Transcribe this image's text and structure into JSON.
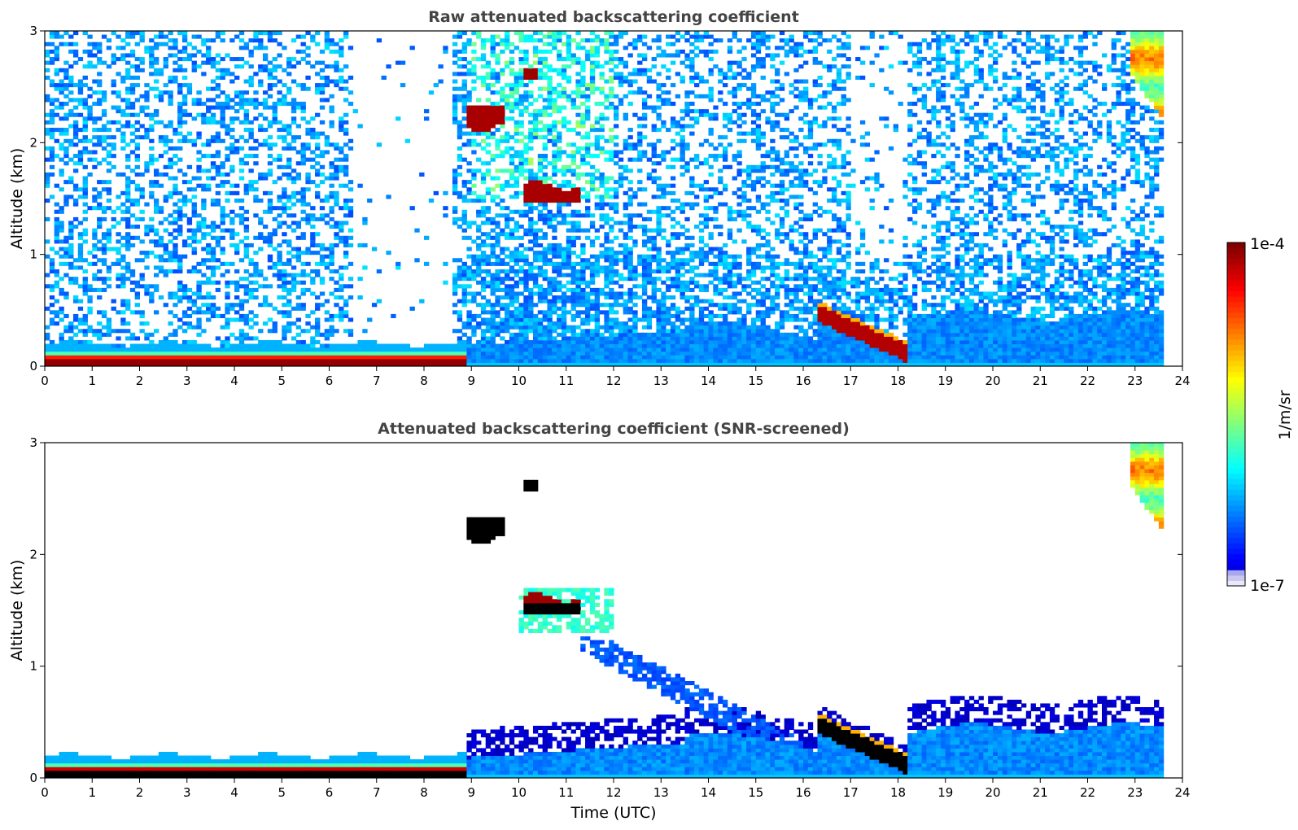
{
  "chart_data": [
    {
      "type": "heatmap",
      "title": "Raw attenuated backscattering coefficient",
      "xlabel": "",
      "ylabel": "Altitude (km)",
      "xlim": [
        0,
        24
      ],
      "ylim": [
        0,
        3
      ],
      "xticks": [
        "0",
        "1",
        "2",
        "3",
        "4",
        "5",
        "6",
        "7",
        "8",
        "9",
        "10",
        "11",
        "12",
        "13",
        "14",
        "15",
        "16",
        "17",
        "18",
        "19",
        "20",
        "21",
        "22",
        "23",
        "24"
      ],
      "yticks": [
        "0",
        "1",
        "2",
        "3"
      ],
      "screened": false,
      "features": [
        {
          "name": "surface layer",
          "t0": 0,
          "t1": 8.9,
          "h0": 0.0,
          "h1": 0.1,
          "level": "max"
        },
        {
          "name": "cloud patch A",
          "t0": 8.8,
          "t1": 9.7,
          "h0": 2.1,
          "h1": 2.35,
          "level": "max"
        },
        {
          "name": "cloud patch B",
          "t0": 10.1,
          "t1": 10.4,
          "h0": 2.55,
          "h1": 2.68,
          "level": "max"
        },
        {
          "name": "cloud layer C",
          "t0": 10.1,
          "t1": 11.4,
          "h0": 1.45,
          "h1": 1.65,
          "level": "max"
        },
        {
          "name": "sloping cloud base",
          "t0": 16.3,
          "t1": 18.2,
          "h0": 0.1,
          "h1": 0.5,
          "level": "max"
        },
        {
          "name": "high cloud",
          "t0": 22.9,
          "t1": 23.6,
          "h0": 2.3,
          "h1": 3.0,
          "level": "mid"
        }
      ]
    },
    {
      "type": "heatmap",
      "title": "Attenuated backscattering coefficient (SNR-screened)",
      "xlabel": "Time (UTC)",
      "ylabel": "Altitude (km)",
      "xlim": [
        0,
        24
      ],
      "ylim": [
        0,
        3
      ],
      "xticks": [
        "0",
        "1",
        "2",
        "3",
        "4",
        "5",
        "6",
        "7",
        "8",
        "9",
        "10",
        "11",
        "12",
        "13",
        "14",
        "15",
        "16",
        "17",
        "18",
        "19",
        "20",
        "21",
        "22",
        "23",
        "24"
      ],
      "yticks": [
        "0",
        "1",
        "2",
        "3"
      ],
      "screened": true
    }
  ],
  "colorbar": {
    "label": "1/m/sr",
    "max_label": "1e-4",
    "min_label": "1e-7",
    "scale": "log",
    "range": [
      1e-07,
      0.0001
    ]
  },
  "colors": {
    "title": "#444444",
    "saturated": "#000000"
  }
}
